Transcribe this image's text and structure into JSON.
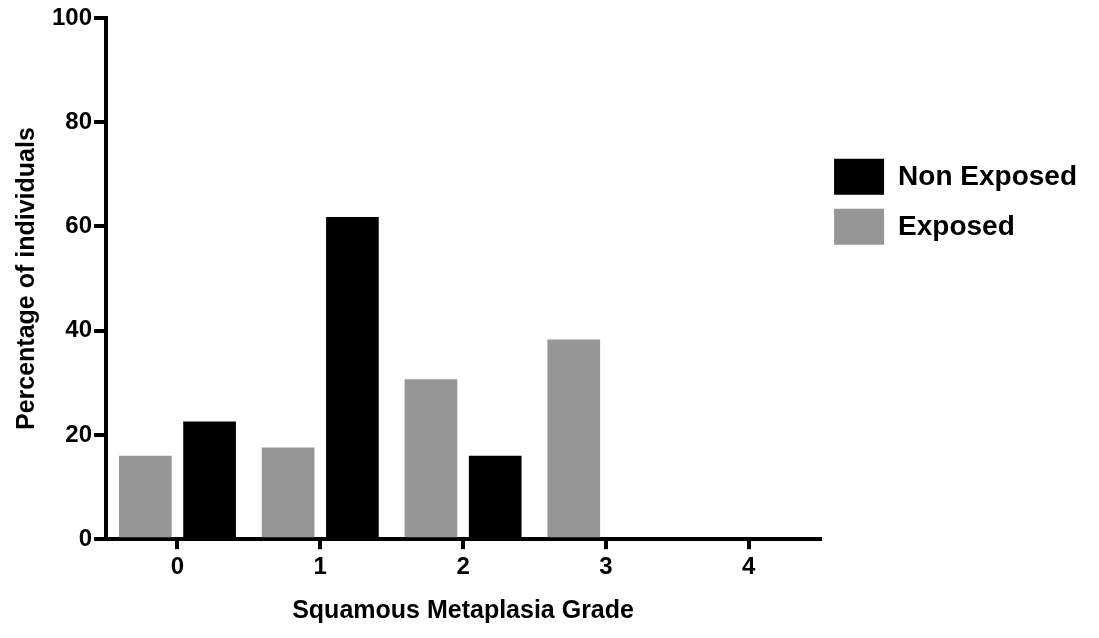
{
  "chart_data": {
    "type": "bar",
    "xlabel": "Squamous Metaplasia Grade",
    "ylabel": "Percentage of individuals",
    "categories": [
      "0",
      "1",
      "2",
      "3",
      "4"
    ],
    "series": [
      {
        "name": "Exposed",
        "color": "#969696",
        "values": [
          16,
          17.6,
          30.7,
          38.3,
          0
        ]
      },
      {
        "name": "Non Exposed",
        "color": "#000000",
        "values": [
          22.6,
          61.8,
          16,
          0,
          0
        ]
      }
    ],
    "ylim": [
      0,
      100
    ],
    "yticks": [
      0,
      20,
      40,
      60,
      80,
      100
    ],
    "grid": false,
    "legend": "top right"
  }
}
